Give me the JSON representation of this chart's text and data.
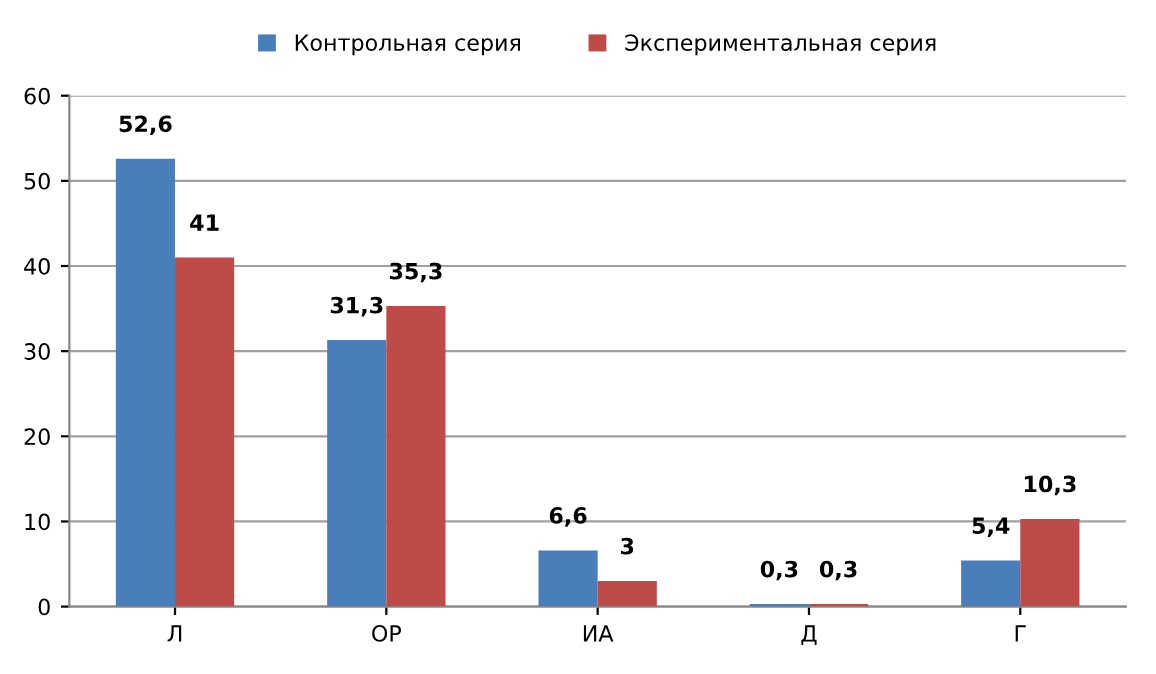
{
  "chart_data": {
    "type": "bar",
    "categories": [
      "Л",
      "ОР",
      "ИА",
      "Д",
      "Г"
    ],
    "series": [
      {
        "name": "Контрольная серия",
        "color": "#4a7ebb",
        "values": [
          52.6,
          31.3,
          6.6,
          0.3,
          5.4
        ],
        "value_labels": [
          "52,6",
          "31,3",
          "6,6",
          "0,3",
          "5,4"
        ]
      },
      {
        "name": "Экспериментальная серия",
        "color": "#be4b48",
        "values": [
          41,
          35.3,
          3,
          0.3,
          10.3
        ],
        "value_labels": [
          "41",
          "35,3",
          "3",
          "0,3",
          "10,3"
        ]
      }
    ],
    "ylim": [
      0,
      60
    ],
    "yticks": [
      0,
      10,
      20,
      30,
      40,
      50,
      60
    ],
    "grid": "y",
    "legend": "top"
  }
}
